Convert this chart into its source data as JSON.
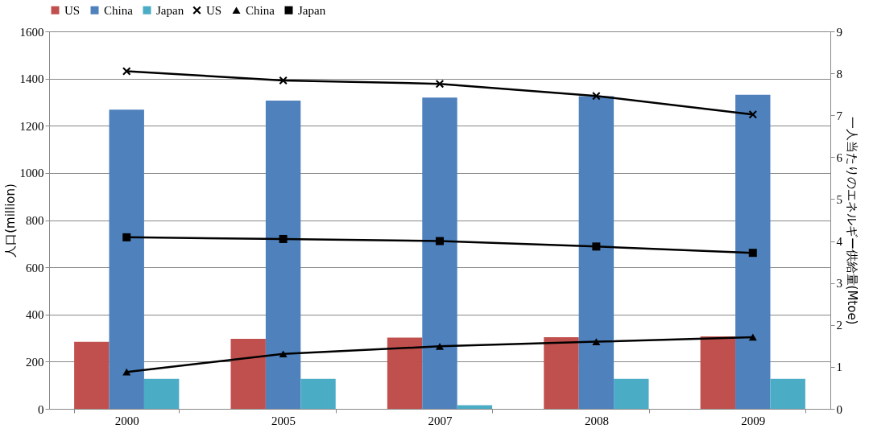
{
  "chart_data": {
    "type": "bar",
    "ylabel": "人口(million)",
    "y2label": "一人当たりのエネルギー供給量(Mtoe)",
    "categories": [
      "2000",
      "2005",
      "2007",
      "2008",
      "2009"
    ],
    "series": [
      {
        "name": "US",
        "color": "#c0504d",
        "values": [
          284,
          297,
          302,
          304,
          307
        ]
      },
      {
        "name": "China",
        "color": "#4f81bd",
        "values": [
          1268,
          1307,
          1319,
          1325,
          1331
        ]
      },
      {
        "name": "Japan",
        "color": "#4bacc6",
        "values": [
          127,
          127,
          15,
          127,
          127
        ]
      },
      {
        "name": "US",
        "type": "line",
        "axis": "y2",
        "color": "#000000",
        "marker": "cross",
        "values": [
          8.05,
          7.83,
          7.75,
          7.46,
          7.02
        ]
      },
      {
        "name": "China",
        "type": "line",
        "axis": "y2",
        "color": "#000000",
        "marker": "triangle",
        "values": [
          0.88,
          1.31,
          1.49,
          1.6,
          1.71
        ]
      },
      {
        "name": "Japan",
        "type": "line",
        "axis": "y2",
        "color": "#000000",
        "marker": "square",
        "values": [
          4.09,
          4.05,
          4.0,
          3.87,
          3.72
        ]
      }
    ],
    "ylim": [
      0,
      1600
    ],
    "yticks": [
      0,
      200,
      400,
      600,
      800,
      1000,
      1200,
      1400,
      1600
    ],
    "y2lim": [
      0,
      9
    ],
    "y2ticks": [
      0,
      1,
      2,
      3,
      4,
      5,
      6,
      7,
      8,
      9
    ],
    "grid": "y",
    "legend": "top",
    "line_style": "solid"
  }
}
